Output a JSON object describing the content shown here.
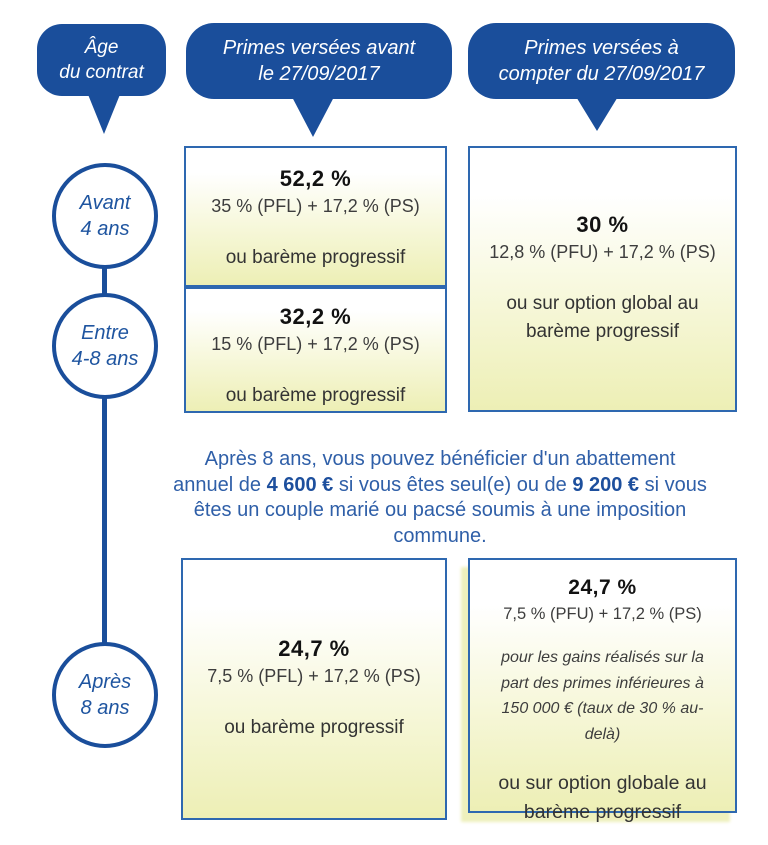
{
  "colors": {
    "header_blue": "#1a4e9b",
    "box_border_blue": "#2e68b0",
    "box_yellow": "#edefb5",
    "note_blue": "#2f5fa8",
    "rate_black": "#121212"
  },
  "headers": {
    "age": {
      "line1": "Âge",
      "line2": "du contrat"
    },
    "before": {
      "line1": "Primes versées avant",
      "line2": "le 27/09/2017"
    },
    "after": {
      "line1": "Primes versées à",
      "line2": "compter du 27/09/2017"
    }
  },
  "timeline": {
    "before_4": {
      "line1": "Avant",
      "line2": "4 ans"
    },
    "between_4_8": {
      "line1": "Entre",
      "line2": "4-8 ans"
    },
    "after_8": {
      "line1": "Après",
      "line2": "8 ans"
    }
  },
  "boxes": {
    "pfl_before4": {
      "rate": "52,2 %",
      "formula": "35 % (PFL) + 17,2 % (PS)",
      "option": "ou barème progressif"
    },
    "pfl_4to8": {
      "rate": "32,2 %",
      "formula": "15 % (PFL) + 17,2 % (PS)",
      "option": "ou barème progressif"
    },
    "pfu_under8": {
      "rate": "30 %",
      "formula": "12,8 % (PFU) + 17,2 % (PS)",
      "option": "ou sur option global au barème progressif"
    },
    "pfl_after8": {
      "rate": "24,7 %",
      "formula": "7,5 % (PFL) + 17,2 % (PS)",
      "option": "ou barème progressif"
    },
    "pfu_after8": {
      "rate": "24,7 %",
      "formula": "7,5 % (PFU) + 17,2 % (PS)",
      "note": "pour les gains réalisés sur la part des primes inférieures à 150 000 € (taux de 30 % au-delà)",
      "option": "ou sur option globale au barème progressif"
    }
  },
  "note": {
    "line1": "Après 8 ans, vous pouvez bénéficier d'un abattement",
    "line2_a": "annuel de ",
    "line2_bold1": "4 600 €",
    "line2_b": " si vous êtes seul(e) ou de ",
    "line2_bold2": "9 200 €",
    "line2_c": " si vous",
    "line3": "êtes un couple marié ou pacsé soumis à une imposition",
    "line4": "commune."
  }
}
